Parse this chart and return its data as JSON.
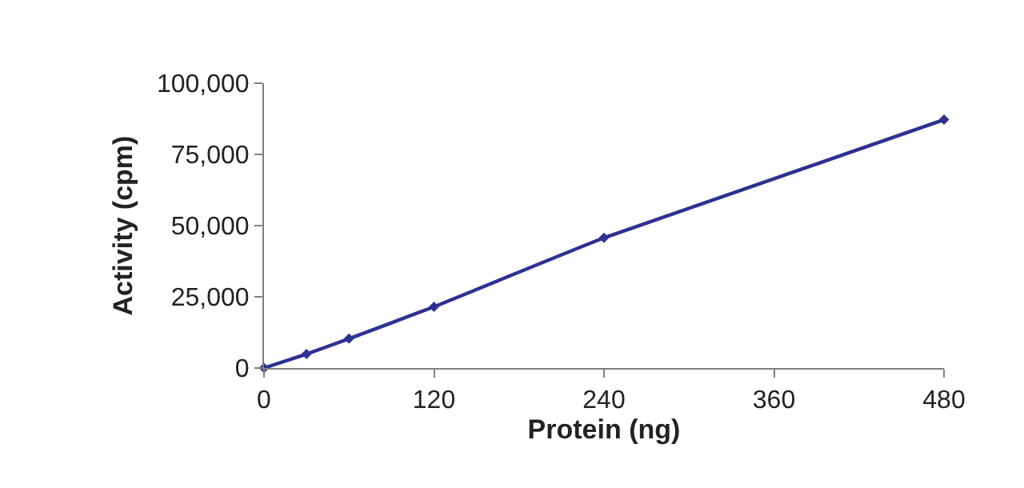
{
  "chart_data": {
    "type": "line",
    "xlabel": "Protein (ng)",
    "ylabel": "Activity (cpm)",
    "x": [
      0,
      30,
      60,
      120,
      240,
      480
    ],
    "series": [
      {
        "color": "#2e3192",
        "values": [
          0,
          4900,
          10300,
          21500,
          45700,
          87200
        ]
      }
    ],
    "xlim": [
      0,
      480
    ],
    "xticks": [
      0,
      120,
      240,
      360,
      480
    ],
    "ylim": [
      0,
      100000
    ],
    "yticks": [
      {
        "value": 0,
        "label": "0"
      },
      {
        "value": 25000,
        "label": "25,000"
      },
      {
        "value": 50000,
        "label": "50,000"
      },
      {
        "value": 75000,
        "label": "75,000"
      },
      {
        "value": 100000,
        "label": "100,000"
      }
    ],
    "legend": false,
    "marker": "diamond",
    "line_style": "solid"
  }
}
